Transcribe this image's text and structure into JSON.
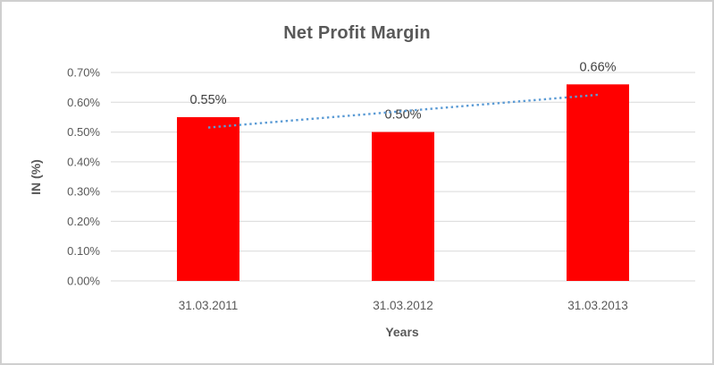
{
  "chart_data": {
    "type": "bar",
    "title": "Net Profit Margin",
    "xlabel": "Years",
    "ylabel": "IN (%)",
    "categories": [
      "31.03.2011",
      "31.03.2012",
      "31.03.2013"
    ],
    "values": [
      0.55,
      0.5,
      0.66
    ],
    "data_labels": [
      "0.55%",
      "0.50%",
      "0.66%"
    ],
    "ylim": [
      0,
      0.7
    ],
    "ytick_step": 0.1,
    "ytick_labels": [
      "0.00%",
      "0.10%",
      "0.20%",
      "0.30%",
      "0.40%",
      "0.50%",
      "0.60%",
      "0.70%"
    ],
    "grid": true,
    "legend": "none",
    "trendline": {
      "style": "dotted",
      "type": "linear",
      "start_value": 0.515,
      "end_value": 0.625,
      "color": "#5B9BD5"
    },
    "colors": {
      "bar": "#FF0000",
      "gridline": "#D9D9D9",
      "axis_line": "#D9D9D9",
      "title_text": "#595959",
      "tick_text": "#595959",
      "data_label_text": "#404040",
      "frame_border": "#CFCFCF",
      "background": "#FFFFFF"
    }
  }
}
